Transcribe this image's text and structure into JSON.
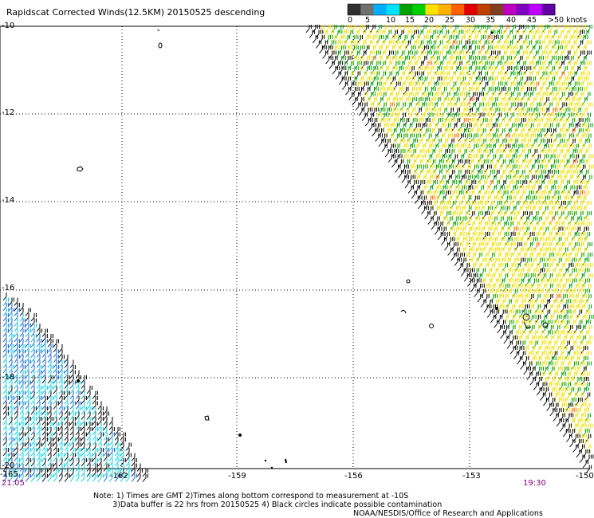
{
  "title": "Rapidscat Corrected Winds(12.5KM) 20150525 descending",
  "legend": {
    "labels": [
      "0",
      "5",
      "10",
      "15",
      "20",
      "25",
      "30",
      "35",
      "40",
      "45",
      ">50 knots"
    ],
    "colors": [
      "#303030",
      "#707070",
      "#00b0ff",
      "#00e0ff",
      "#00a000",
      "#00d000",
      "#ffe000",
      "#ffb000",
      "#ff6000",
      "#e00000",
      "#c04000",
      "#804020",
      "#c000c0",
      "#8000c0",
      "#c000ff",
      "#6000a0"
    ]
  },
  "axes": {
    "lat_labels": [
      "-10",
      "-12",
      "-14",
      "-16",
      "-18",
      "-20"
    ],
    "lon_labels": [
      "-165",
      "-162",
      "-159",
      "-156",
      "-153",
      "-150"
    ]
  },
  "times": {
    "left": "21:05",
    "right": "19:30"
  },
  "notes": "Note: 1) Times are GMT 2)Times along bottom correspond to measurement at -10S\n        3)Data buffer is 22 hrs from 20150525 4) Black circles indicate possible contamination",
  "credit": "NOAA/NESDIS/Office of Research and Applications"
}
